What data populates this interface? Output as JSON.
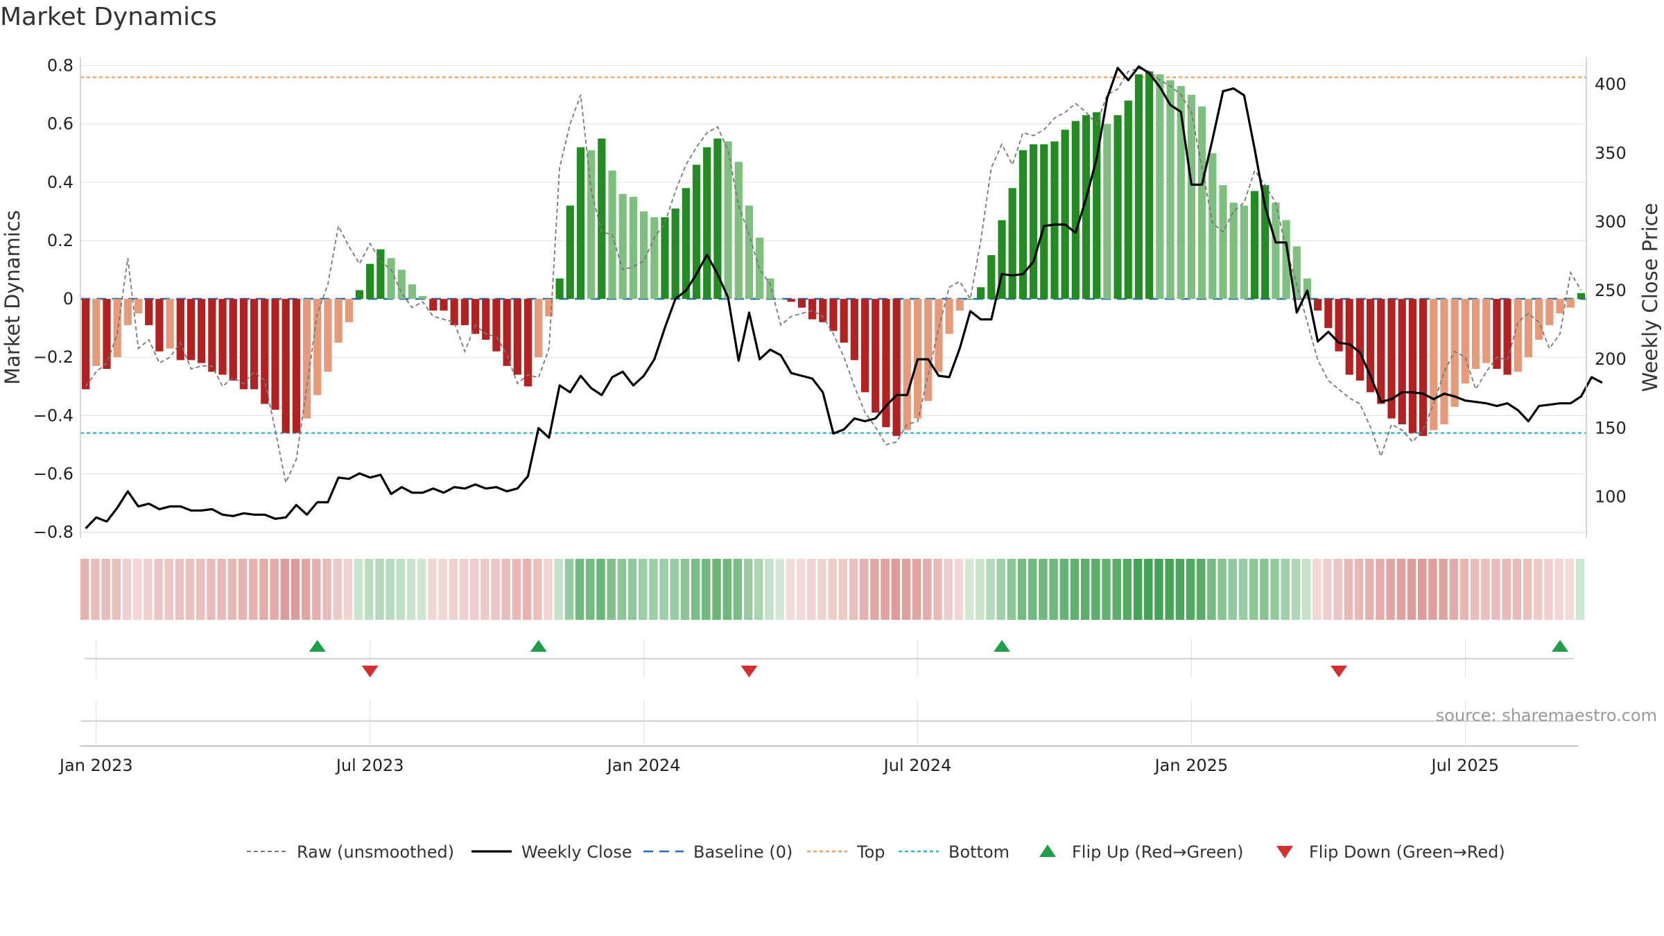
{
  "title": "Market Dynamics",
  "chart_data": {
    "type": "bar",
    "title": "Market Dynamics",
    "ylabel": "Market Dynamics",
    "y2label": "Weekly Close Price",
    "ylim": [
      -0.82,
      0.83
    ],
    "y2lim": [
      70,
      420
    ],
    "yticks": [
      "0.8",
      "0.6",
      "0.4",
      "0.2",
      "0",
      "−0.2",
      "−0.4",
      "−0.6",
      "−0.8"
    ],
    "yticks_values": [
      0.8,
      0.6,
      0.4,
      0.2,
      0,
      -0.2,
      -0.4,
      -0.6,
      -0.8
    ],
    "y2ticks": [
      "400",
      "350",
      "300",
      "250",
      "200",
      "150",
      "100"
    ],
    "y2ticks_values": [
      400,
      350,
      300,
      250,
      200,
      150,
      100
    ],
    "xticks": [
      "Jan 2023",
      "Jul 2023",
      "Jan 2024",
      "Jul 2024",
      "Jan 2025",
      "Jul 2025"
    ],
    "xticks_week_index": [
      1,
      27,
      53,
      79,
      105,
      131
    ],
    "grid": true,
    "top_line": 0.76,
    "bottom_line": -0.46,
    "baseline": 0,
    "dates": "weekly, 2022-12-26 to 2025-09-08",
    "smoothed": [
      -0.31,
      -0.23,
      -0.24,
      -0.2,
      -0.09,
      -0.05,
      -0.09,
      -0.18,
      -0.17,
      -0.21,
      -0.21,
      -0.22,
      -0.25,
      -0.26,
      -0.28,
      -0.31,
      -0.31,
      -0.36,
      -0.38,
      -0.46,
      -0.46,
      -0.41,
      -0.33,
      -0.25,
      -0.15,
      -0.08,
      0.03,
      0.12,
      0.17,
      0.14,
      0.1,
      0.05,
      0.01,
      -0.04,
      -0.04,
      -0.09,
      -0.09,
      -0.12,
      -0.14,
      -0.18,
      -0.23,
      -0.26,
      -0.3,
      -0.2,
      -0.06,
      0.07,
      0.32,
      0.52,
      0.51,
      0.55,
      0.44,
      0.36,
      0.35,
      0.3,
      0.28,
      0.28,
      0.31,
      0.38,
      0.46,
      0.52,
      0.55,
      0.54,
      0.47,
      0.32,
      0.21,
      0.07,
      0.0,
      -0.01,
      -0.03,
      -0.07,
      -0.08,
      -0.11,
      -0.15,
      -0.21,
      -0.32,
      -0.39,
      -0.44,
      -0.47,
      -0.45,
      -0.41,
      -0.35,
      -0.25,
      -0.12,
      -0.04,
      0.0,
      0.04,
      0.15,
      0.27,
      0.38,
      0.51,
      0.53,
      0.53,
      0.54,
      0.58,
      0.61,
      0.63,
      0.64,
      0.6,
      0.63,
      0.68,
      0.77,
      0.78,
      0.77,
      0.75,
      0.73,
      0.7,
      0.66,
      0.5,
      0.39,
      0.33,
      0.32,
      0.37,
      0.39,
      0.33,
      0.27,
      0.18,
      0.07,
      -0.04,
      -0.1,
      -0.18,
      -0.26,
      -0.28,
      -0.32,
      -0.36,
      -0.41,
      -0.43,
      -0.46,
      -0.47,
      -0.45,
      -0.43,
      -0.37,
      -0.29,
      -0.24,
      -0.22,
      -0.24,
      -0.26,
      -0.25,
      -0.2,
      -0.14,
      -0.09,
      -0.05,
      -0.03,
      0.02
    ],
    "raw": [
      -0.3,
      -0.25,
      -0.22,
      -0.12,
      0.14,
      -0.17,
      -0.14,
      -0.22,
      -0.2,
      -0.15,
      -0.24,
      -0.23,
      -0.23,
      -0.3,
      -0.27,
      -0.29,
      -0.25,
      -0.28,
      -0.45,
      -0.63,
      -0.55,
      -0.3,
      -0.05,
      0.05,
      0.25,
      0.18,
      0.12,
      0.19,
      0.13,
      0.1,
      0.02,
      -0.03,
      -0.01,
      -0.06,
      -0.07,
      -0.08,
      -0.18,
      -0.09,
      -0.12,
      -0.13,
      -0.19,
      -0.29,
      -0.26,
      -0.27,
      -0.17,
      0.45,
      0.6,
      0.7,
      0.37,
      0.23,
      0.22,
      0.1,
      0.11,
      0.13,
      0.21,
      0.26,
      0.37,
      0.46,
      0.52,
      0.57,
      0.59,
      0.51,
      0.32,
      0.22,
      0.1,
      0.05,
      -0.09,
      -0.06,
      -0.05,
      -0.04,
      -0.06,
      -0.12,
      -0.2,
      -0.3,
      -0.39,
      -0.44,
      -0.5,
      -0.49,
      -0.43,
      -0.42,
      -0.26,
      -0.1,
      0.04,
      0.06,
      0.0,
      0.2,
      0.45,
      0.53,
      0.46,
      0.57,
      0.56,
      0.58,
      0.62,
      0.64,
      0.67,
      0.64,
      0.6,
      0.7,
      0.72,
      0.78,
      0.79,
      0.78,
      0.75,
      0.73,
      0.7,
      0.64,
      0.45,
      0.26,
      0.23,
      0.3,
      0.33,
      0.44,
      0.39,
      0.33,
      0.17,
      0.05,
      -0.08,
      -0.21,
      -0.28,
      -0.31,
      -0.34,
      -0.36,
      -0.44,
      -0.54,
      -0.43,
      -0.45,
      -0.49,
      -0.45,
      -0.36,
      -0.25,
      -0.18,
      -0.2,
      -0.31,
      -0.25,
      -0.2,
      -0.21,
      -0.08,
      -0.05,
      -0.08,
      -0.17,
      -0.12,
      0.09,
      0.03
    ],
    "weekly_close": [
      77,
      85,
      82,
      92,
      104,
      93,
      95,
      91,
      93,
      93,
      90,
      90,
      91,
      87,
      86,
      88,
      87,
      87,
      84,
      85,
      94,
      87,
      96,
      96,
      114,
      113,
      117,
      114,
      116,
      102,
      107,
      103,
      103,
      106,
      103,
      107,
      106,
      109,
      106,
      107,
      104,
      106,
      115,
      150,
      143,
      181,
      176,
      188,
      179,
      174,
      187,
      191,
      181,
      188,
      200,
      223,
      244,
      250,
      262,
      276,
      262,
      245,
      199,
      234,
      200,
      207,
      203,
      190,
      188,
      186,
      176,
      146,
      149,
      157,
      155,
      157,
      166,
      174,
      174,
      200,
      200,
      188,
      187,
      208,
      235,
      229,
      229,
      262,
      261,
      262,
      271,
      297,
      298,
      298,
      292,
      317,
      346,
      390,
      412,
      403,
      413,
      408,
      398,
      385,
      380,
      327,
      327,
      360,
      395,
      397,
      392,
      353,
      311,
      285,
      285,
      234,
      250,
      213,
      220,
      212,
      211,
      205,
      188,
      169,
      171,
      176,
      176,
      175,
      171,
      175,
      173,
      170,
      169,
      168,
      166,
      168,
      163,
      155,
      166,
      167,
      168,
      168,
      173,
      187,
      183
    ],
    "flip_up_weeks": [
      22,
      43,
      87,
      140
    ],
    "flip_down_weeks": [
      27,
      63,
      119
    ],
    "legend": [
      {
        "label": "Raw (unsmoothed)",
        "style": "dashed-gray"
      },
      {
        "label": "Weekly Close",
        "style": "solid-black"
      },
      {
        "label": "Baseline (0)",
        "style": "dashed-blue"
      },
      {
        "label": "Top",
        "style": "dotted-orange"
      },
      {
        "label": "Bottom",
        "style": "dotted-cyan"
      },
      {
        "label": "Flip Up (Red→Green)",
        "style": "triangle-up-green"
      },
      {
        "label": "Flip Down (Green→Red)",
        "style": "triangle-down-red"
      }
    ],
    "legend_position": "bottom-center"
  },
  "colors": {
    "green_dark": "#228b22",
    "green_light": "#7fbf7f",
    "red_dark": "#b22222",
    "red_light": "#e59a7a",
    "raw_line": "#777777",
    "close_line": "#000000",
    "baseline": "#1f6fb5",
    "top": "#f0a060",
    "bottom": "#29b6c8",
    "flip_up": "#1e9e4a",
    "flip_down": "#d32f2f"
  },
  "source": "source: sharemaestro.com"
}
